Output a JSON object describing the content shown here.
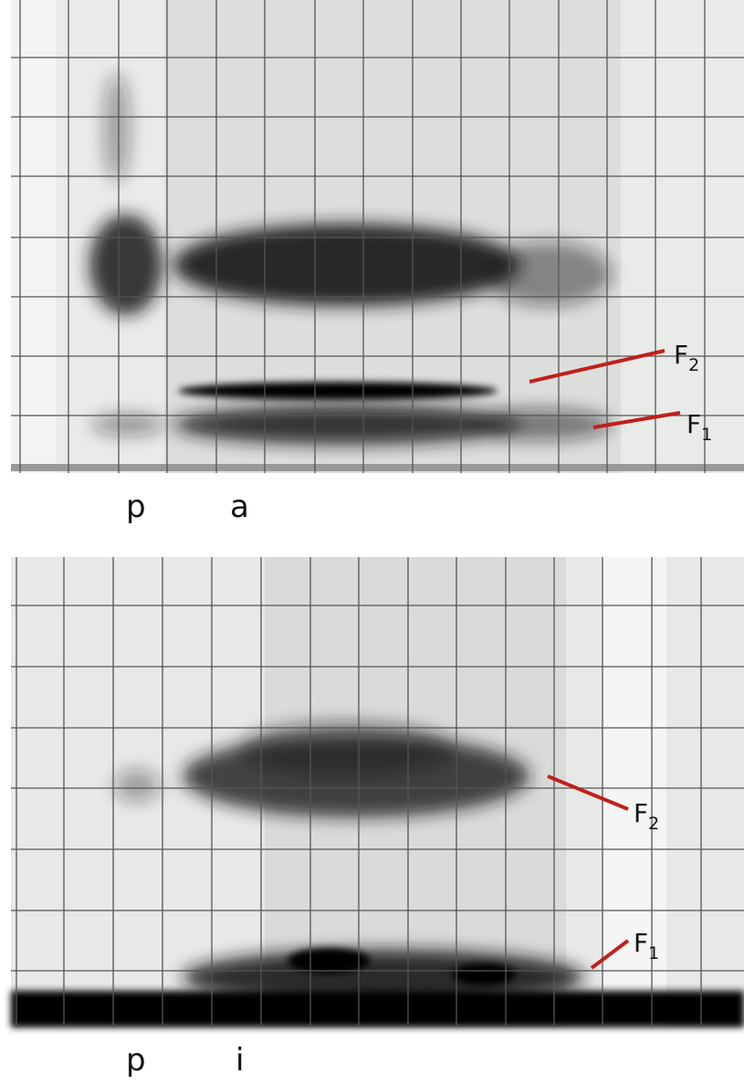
{
  "panels": [
    {
      "segments": [
        "p",
        "a"
      ],
      "formants": [
        {
          "base": "F",
          "sub": "2"
        },
        {
          "base": "F",
          "sub": "1"
        }
      ]
    },
    {
      "segments": [
        "p",
        "i"
      ],
      "formants": [
        {
          "base": "F",
          "sub": "2"
        },
        {
          "base": "F",
          "sub": "1"
        }
      ]
    }
  ]
}
